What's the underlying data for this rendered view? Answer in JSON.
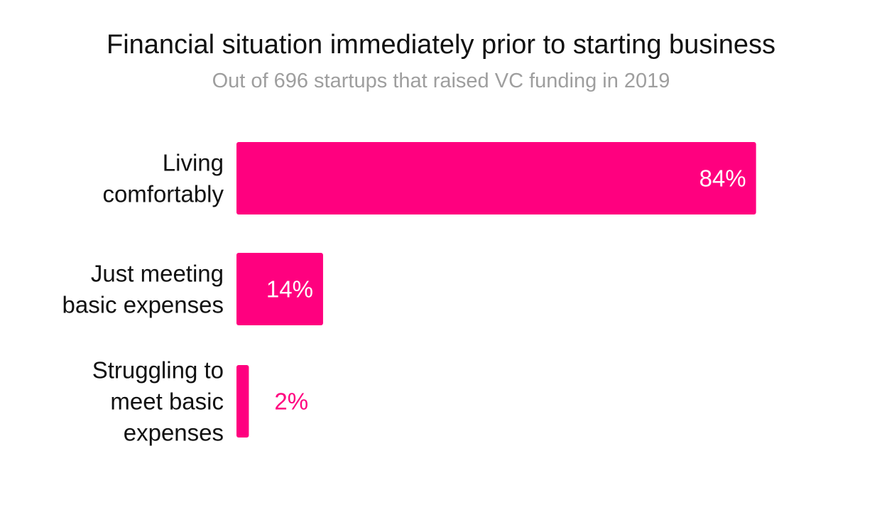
{
  "title": "Financial situation immediately prior to starting business",
  "subtitle": "Out of 696 startups that raised VC funding in 2019",
  "colors": {
    "bar": "#ff007f",
    "inside_label": "#ffffff",
    "outside_label": "#ff007f"
  },
  "chart_data": {
    "type": "bar",
    "orientation": "horizontal",
    "title": "Financial situation immediately prior to starting business",
    "subtitle": "Out of 696 startups that raised VC funding in 2019",
    "categories": [
      [
        "Living",
        "comfortably"
      ],
      [
        "Just meeting",
        "basic expenses"
      ],
      [
        "Struggling to",
        "meet basic",
        "expenses"
      ]
    ],
    "values": [
      84,
      14,
      2
    ],
    "value_labels": [
      "84%",
      "14%",
      "2%"
    ],
    "unit": "%",
    "xlim": [
      0,
      100
    ],
    "grid": false,
    "legend": "none"
  }
}
